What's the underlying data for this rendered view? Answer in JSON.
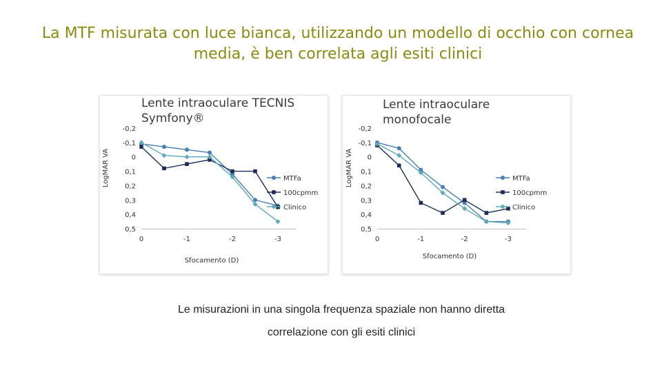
{
  "header": {
    "title_line1": "La MTF misurata con luce bianca, utilizzando un modello di occhio con cornea",
    "title_line2": "media, è ben correlata agli esiti clinici"
  },
  "footer": {
    "caption_line1": "Le misurazioni in una singola frequenza spaziale non hanno diretta",
    "caption_line2": "correlazione con gli esiti clinici"
  },
  "colors": {
    "mtfa": "#4a7eb0",
    "cpmm100": "#1f2d56",
    "clinico": "#5fa8b8",
    "title": "#8a8a16"
  },
  "chart_data": [
    {
      "type": "line",
      "title_line1": "Lente intraoculare TECNIS",
      "title_line2": "Symfony®",
      "xlabel": "Sfocamento (D)",
      "ylabel": "LogMAR VA",
      "x_ticks": [
        "0",
        "-1",
        "-2",
        "-3"
      ],
      "y_ticks": [
        "-0,2",
        "-0,1",
        "0",
        "0,1",
        "0,2",
        "0,3",
        "0,4",
        "0,5"
      ],
      "ylim": [
        -0.2,
        0.5
      ],
      "xlim": [
        0,
        -3
      ],
      "y_inverted": true,
      "legend_position": "right",
      "x": [
        0,
        -0.5,
        -1,
        -1.5,
        -2,
        -2.5,
        -3
      ],
      "series": [
        {
          "name": "MTFa",
          "color_key": "mtfa",
          "values": [
            -0.09,
            -0.07,
            -0.05,
            -0.03,
            0.12,
            0.3,
            0.34
          ]
        },
        {
          "name": "100cpmm",
          "color_key": "cpmm100",
          "values": [
            -0.07,
            0.08,
            0.05,
            0.02,
            0.1,
            0.1,
            0.35
          ]
        },
        {
          "name": "Clinico",
          "color_key": "clinico",
          "values": [
            -0.1,
            -0.01,
            0.0,
            0.0,
            0.14,
            0.33,
            0.45
          ]
        }
      ]
    },
    {
      "type": "line",
      "title_line1": "Lente intraoculare",
      "title_line2": "monofocale",
      "xlabel": "Sfocamento (D)",
      "ylabel": "LogMAR VA",
      "x_ticks": [
        "0",
        "-1",
        "-2",
        "-3"
      ],
      "y_ticks": [
        "-0,2",
        "-0,1",
        "0",
        "0,1",
        "0,2",
        "0,3",
        "0,4",
        "0,5"
      ],
      "ylim": [
        -0.2,
        0.5
      ],
      "xlim": [
        0,
        -3
      ],
      "y_inverted": true,
      "legend_position": "right",
      "x": [
        0,
        -0.5,
        -1,
        -1.5,
        -2,
        -2.5,
        -3
      ],
      "series": [
        {
          "name": "MTFa",
          "color_key": "mtfa",
          "values": [
            -0.1,
            -0.06,
            0.09,
            0.21,
            0.32,
            0.45,
            0.45
          ]
        },
        {
          "name": "100cpmm",
          "color_key": "cpmm100",
          "values": [
            -0.08,
            0.06,
            0.32,
            0.39,
            0.3,
            0.39,
            0.36
          ]
        },
        {
          "name": "Clinico",
          "color_key": "clinico",
          "values": [
            -0.09,
            -0.01,
            0.11,
            0.25,
            0.36,
            0.45,
            0.46
          ]
        }
      ]
    }
  ]
}
